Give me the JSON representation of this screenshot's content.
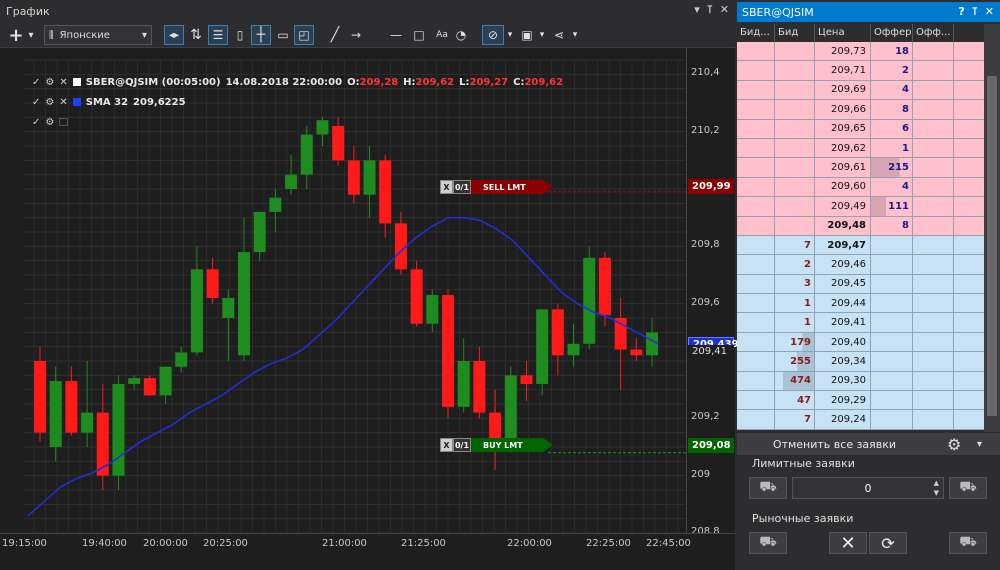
{
  "chart_window": {
    "title": "График",
    "controls": [
      "▾",
      "⊺",
      "✕"
    ]
  },
  "toolbar": {
    "chart_type": "Японские"
  },
  "legend": {
    "main": {
      "symbol": "SBER@QJSIM (00:05:00)",
      "datetime": "14.08.2018 22:00:00",
      "o_label": "O:",
      "o": "209,28",
      "h_label": "H:",
      "h": "209,62",
      "l_label": "L:",
      "l": "209,27",
      "c_label": "C:",
      "c": "209,62"
    },
    "sma": {
      "label": "SMA 32",
      "value": "209,6225"
    }
  },
  "orders": {
    "sell": {
      "qty": "0/1",
      "label": "SELL LMT",
      "price": "209,99",
      "x": "X"
    },
    "buy": {
      "qty": "0/1",
      "label": "BUY LMT",
      "price": "209,08",
      "x": "X"
    }
  },
  "price_tags": {
    "sma": "209,439",
    "last": "209,41"
  },
  "chart_data": {
    "type": "candlestick",
    "title": "SBER@QJSIM (00:05:00)",
    "ylim": [
      208.8,
      210.45
    ],
    "y_ticks": [
      "210,4",
      "210,2",
      "209,8",
      "209,6",
      "209,2",
      "209",
      "208,8"
    ],
    "x_ticks": [
      "19:15:00",
      "19:40:00",
      "20:00:00",
      "20:25:00",
      "21:00:00",
      "21:25:00",
      "22:00:00",
      "22:25:00",
      "22:45:00"
    ],
    "candles": [
      [
        209.4,
        209.45,
        209.12,
        209.15
      ],
      [
        209.1,
        209.38,
        209.05,
        209.33
      ],
      [
        209.33,
        209.38,
        209.14,
        209.15
      ],
      [
        209.15,
        209.4,
        209.1,
        209.22
      ],
      [
        209.22,
        209.32,
        208.95,
        209.0
      ],
      [
        209.0,
        209.35,
        208.95,
        209.32
      ],
      [
        209.32,
        209.35,
        209.3,
        209.34
      ],
      [
        209.34,
        209.35,
        209.28,
        209.28
      ],
      [
        209.28,
        209.38,
        209.25,
        209.38
      ],
      [
        209.38,
        209.45,
        209.36,
        209.43
      ],
      [
        209.43,
        209.8,
        209.42,
        209.72
      ],
      [
        209.72,
        209.76,
        209.6,
        209.62
      ],
      [
        209.55,
        209.65,
        209.4,
        209.62
      ],
      [
        209.42,
        209.9,
        209.4,
        209.78
      ],
      [
        209.78,
        209.92,
        209.75,
        209.92
      ],
      [
        209.92,
        210.0,
        209.85,
        209.97
      ],
      [
        210.0,
        210.12,
        209.98,
        210.05
      ],
      [
        210.05,
        210.22,
        210.0,
        210.19
      ],
      [
        210.19,
        210.25,
        210.15,
        210.24
      ],
      [
        210.22,
        210.25,
        210.08,
        210.1
      ],
      [
        210.1,
        210.15,
        209.95,
        209.98
      ],
      [
        209.98,
        210.15,
        209.9,
        210.1
      ],
      [
        210.1,
        210.12,
        209.83,
        209.88
      ],
      [
        209.88,
        209.92,
        209.7,
        209.72
      ],
      [
        209.72,
        209.75,
        209.52,
        209.53
      ],
      [
        209.53,
        209.65,
        209.5,
        209.63
      ],
      [
        209.63,
        209.65,
        209.2,
        209.24
      ],
      [
        209.24,
        209.48,
        209.22,
        209.4
      ],
      [
        209.4,
        209.45,
        209.2,
        209.22
      ],
      [
        209.22,
        209.3,
        209.02,
        209.09
      ],
      [
        209.09,
        209.38,
        209.08,
        209.35
      ],
      [
        209.35,
        209.4,
        209.26,
        209.32
      ],
      [
        209.32,
        209.58,
        209.28,
        209.58
      ],
      [
        209.58,
        209.6,
        209.35,
        209.42
      ],
      [
        209.42,
        209.53,
        209.38,
        209.46
      ],
      [
        209.46,
        209.8,
        209.44,
        209.76
      ],
      [
        209.76,
        209.78,
        209.52,
        209.56
      ],
      [
        209.55,
        209.62,
        209.3,
        209.44
      ],
      [
        209.44,
        209.48,
        209.4,
        209.42
      ],
      [
        209.42,
        209.55,
        209.38,
        209.5
      ]
    ],
    "sma": [
      208.86,
      208.91,
      208.96,
      208.99,
      209.01,
      209.04,
      209.08,
      209.12,
      209.15,
      209.18,
      209.22,
      209.25,
      209.28,
      209.32,
      209.36,
      209.39,
      209.41,
      209.44,
      209.49,
      209.54,
      209.6,
      209.66,
      209.72,
      209.78,
      209.83,
      209.87,
      209.9,
      209.9,
      209.89,
      209.86,
      209.82,
      209.76,
      209.7,
      209.64,
      209.6,
      209.57,
      209.55,
      209.52,
      209.49,
      209.46
    ]
  },
  "dom": {
    "title": "SBER@QJSIM",
    "controls": [
      "?",
      "⊺",
      "✕"
    ],
    "headers": [
      "Бид...",
      "Бид",
      "Цена",
      "Оффер",
      "Офф..."
    ],
    "asks": [
      {
        "price": "209,73",
        "offer": "18"
      },
      {
        "price": "209,71",
        "offer": "2"
      },
      {
        "price": "209,69",
        "offer": "4"
      },
      {
        "price": "209,66",
        "offer": "8"
      },
      {
        "price": "209,65",
        "offer": "6"
      },
      {
        "price": "209,62",
        "offer": "1"
      },
      {
        "price": "209,61",
        "offer": "215"
      },
      {
        "price": "209,60",
        "offer": "4"
      },
      {
        "price": "209,49",
        "offer": "111"
      },
      {
        "price": "209,48",
        "offer": "8"
      }
    ],
    "bids": [
      {
        "price": "209,47",
        "bid": "7"
      },
      {
        "price": "209,46",
        "bid": "2"
      },
      {
        "price": "209,45",
        "bid": "3"
      },
      {
        "price": "209,44",
        "bid": "1"
      },
      {
        "price": "209,41",
        "bid": "1"
      },
      {
        "price": "209,40",
        "bid": "179"
      },
      {
        "price": "209,34",
        "bid": "255"
      },
      {
        "price": "209,30",
        "bid": "474"
      },
      {
        "price": "209,29",
        "bid": "47"
      },
      {
        "price": "209,24",
        "bid": "7"
      }
    ],
    "cancel_all": "Отменить все заявки",
    "limit_label": "Лимитные заявки",
    "quantity": "0",
    "market_label": "Рыночные заявки"
  }
}
